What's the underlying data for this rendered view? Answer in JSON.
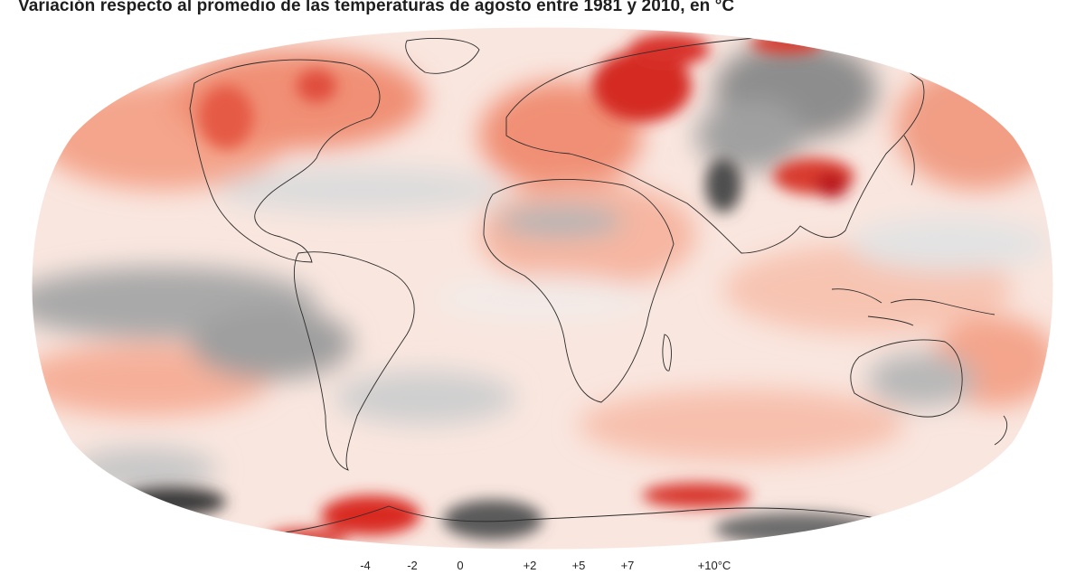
{
  "title": "Variación respecto al promedio de las temperaturas de agosto entre 1981 y 2010, en °C",
  "legend": {
    "labels": [
      "-4",
      "-2",
      "0",
      "+2",
      "+5",
      "+7",
      "+10°C"
    ]
  },
  "colors": {
    "strong_warm": "#cc1f1f",
    "warm": "#ee6a50",
    "mild_warm": "#f6a990",
    "neutral": "#f7f3f1",
    "mild_cool": "#c8c8c8",
    "cool": "#8a8a8a",
    "strong_cool": "#3f3f3f"
  }
}
